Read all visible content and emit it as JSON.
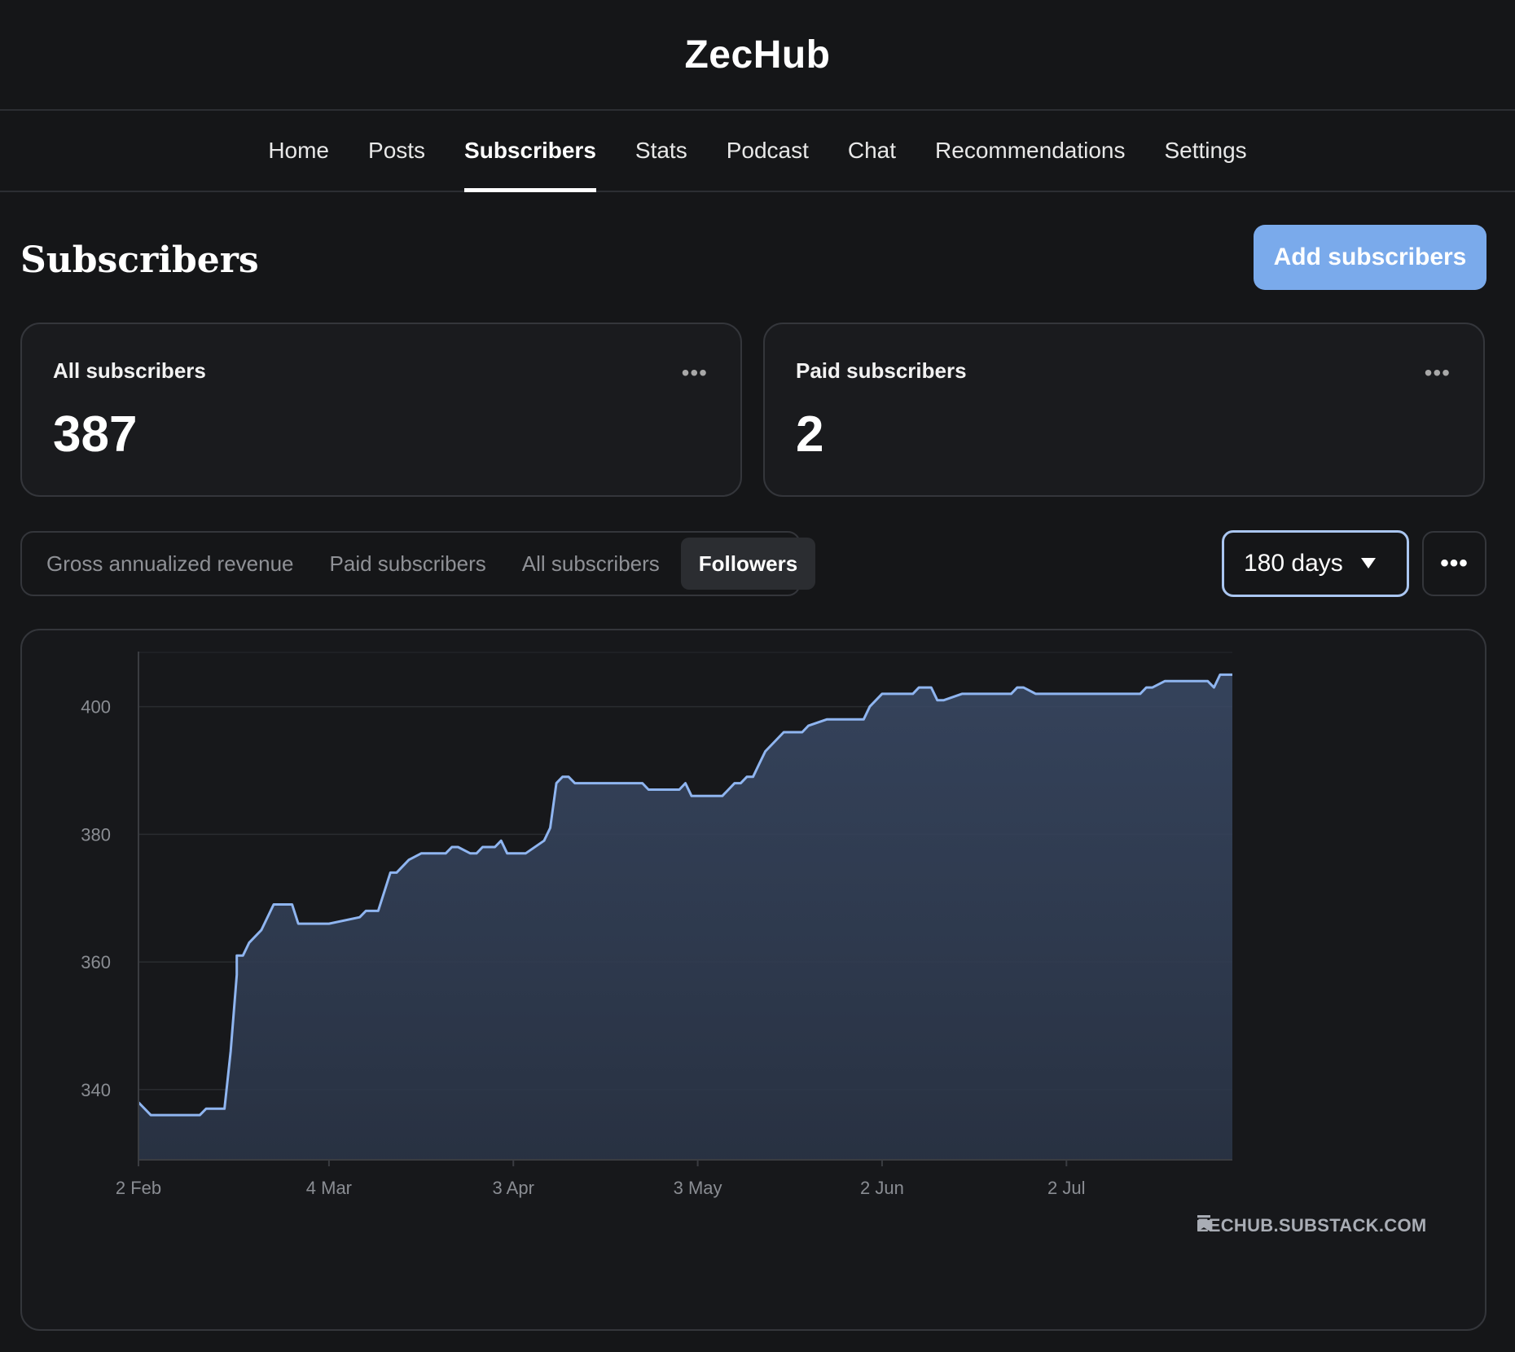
{
  "brand": {
    "title": "ZecHub"
  },
  "nav": {
    "items": [
      {
        "label": "Home"
      },
      {
        "label": "Posts"
      },
      {
        "label": "Subscribers",
        "active": true
      },
      {
        "label": "Stats"
      },
      {
        "label": "Podcast"
      },
      {
        "label": "Chat"
      },
      {
        "label": "Recommendations"
      },
      {
        "label": "Settings"
      }
    ]
  },
  "page": {
    "title": "Subscribers",
    "add_button_label": "Add subscribers"
  },
  "cards": {
    "all": {
      "label": "All subscribers",
      "value": "387",
      "more_icon": "ellipsis-icon"
    },
    "paid": {
      "label": "Paid subscribers",
      "value": "2",
      "more_icon": "ellipsis-icon"
    }
  },
  "tabs": {
    "items": [
      {
        "label": "Gross annualized revenue"
      },
      {
        "label": "Paid subscribers"
      },
      {
        "label": "All subscribers"
      },
      {
        "label": "Followers",
        "active": true
      }
    ]
  },
  "range": {
    "selected": "180 days",
    "icon": "caret-down-icon"
  },
  "chart_more": {
    "label": "•••"
  },
  "watermark": {
    "text": "ZECHUB.SUBSTACK.COM",
    "icon": "bookmark-icon"
  },
  "colors": {
    "accent": "#7aaaeb",
    "line": "#8fb5f0",
    "background": "#151618"
  },
  "chart_data": {
    "type": "area",
    "title": "",
    "xlabel": "",
    "ylabel": "",
    "x_ticks": [
      "2 Feb",
      "4 Mar",
      "3 Apr",
      "3 May",
      "2 Jun",
      "2 Jul"
    ],
    "y_ticks": [
      340,
      360,
      380,
      400
    ],
    "xlim": [
      "2 Feb",
      "29 Jul"
    ],
    "ylim": [
      329,
      408.5
    ],
    "grid": true,
    "x": [
      "2 Feb",
      "4 Feb",
      "6 Feb",
      "9 Feb",
      "12 Feb",
      "13 Feb",
      "16 Feb",
      "17 Feb",
      "18 Feb",
      "18 Feb",
      "19 Feb",
      "20 Feb",
      "22 Feb",
      "24 Feb",
      "27 Feb",
      "28 Feb",
      "1 Mar",
      "3 Mar",
      "4 Mar",
      "9 Mar",
      "10 Mar",
      "12 Mar",
      "13 Mar",
      "14 Mar",
      "15 Mar",
      "17 Mar",
      "19 Mar",
      "23 Mar",
      "24 Mar",
      "25 Mar",
      "27 Mar",
      "28 Mar",
      "29 Mar",
      "31 Mar",
      "1 Apr",
      "2 Apr",
      "3 Apr",
      "5 Apr",
      "8 Apr",
      "9 Apr",
      "10 Apr",
      "11 Apr",
      "12 Apr",
      "13 Apr",
      "15 Apr",
      "16 Apr",
      "24 Apr",
      "25 Apr",
      "30 Apr",
      "1 May",
      "2 May",
      "7 May",
      "8 May",
      "9 May",
      "10 May",
      "11 May",
      "12 May",
      "13 May",
      "14 May",
      "17 May",
      "18 May",
      "20 May",
      "21 May",
      "24 May",
      "25 May",
      "30 May",
      "31 May",
      "2 Jun",
      "3 Jun",
      "7 Jun",
      "8 Jun",
      "10 Jun",
      "11 Jun",
      "12 Jun",
      "15 Jun",
      "16 Jun",
      "17 Jun",
      "23 Jun",
      "24 Jun",
      "25 Jun",
      "27 Jun",
      "28 Jun",
      "14 Jul",
      "15 Jul",
      "16 Jul",
      "18 Jul",
      "25 Jul",
      "26 Jul",
      "27 Jul",
      "28 Jul",
      "29 Jul"
    ],
    "series": [
      {
        "values": [
          338,
          336,
          336,
          336,
          336,
          337,
          337,
          346,
          358,
          361,
          361,
          363,
          365,
          369,
          369,
          366,
          366,
          366,
          366,
          367,
          368,
          368,
          371,
          374,
          374,
          376,
          377,
          377,
          378,
          378,
          377,
          377,
          378,
          378,
          379,
          377,
          377,
          377,
          379,
          381,
          388,
          389,
          389,
          388,
          388,
          388,
          388,
          387,
          387,
          388,
          386,
          386,
          387,
          388,
          388,
          389,
          389,
          391,
          393,
          396,
          396,
          396,
          397,
          398,
          398,
          398,
          400,
          402,
          402,
          402,
          403,
          403,
          401,
          401,
          402,
          402,
          402,
          402,
          403,
          403,
          402,
          402,
          402,
          403,
          403,
          404,
          404,
          403,
          405,
          405,
          405
        ]
      }
    ]
  }
}
